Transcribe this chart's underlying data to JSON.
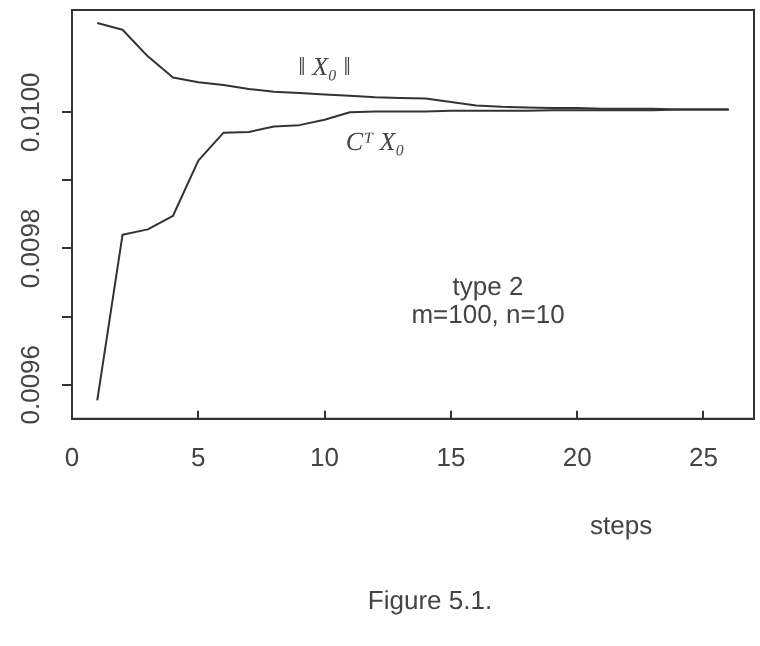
{
  "chart_data": {
    "type": "line",
    "xlabel": "steps",
    "xlim": [
      0,
      27
    ],
    "xticks": [
      0,
      5,
      10,
      15,
      20,
      25
    ],
    "ylim": [
      0.00955,
      0.01015
    ],
    "yticks": [
      0.0096,
      {
        "value": 0.0097,
        "label": null
      },
      0.0098,
      {
        "value": 0.0099,
        "label": null
      },
      {
        "value": 0.01,
        "label": "0.0100"
      }
    ],
    "x": [
      1,
      2,
      3,
      4,
      5,
      6,
      7,
      8,
      9,
      10,
      11,
      12,
      13,
      14,
      15,
      16,
      17,
      18,
      19,
      20,
      21,
      22,
      23,
      24,
      25,
      26
    ],
    "series": [
      {
        "name": "‖ X₀ ‖",
        "color": "#333333",
        "values": [
          0.010131,
          0.010121,
          0.010082,
          0.010051,
          0.010044,
          0.01004,
          0.010034,
          0.01003,
          0.010028,
          0.010026,
          0.010024,
          0.010022,
          0.010021,
          0.01002,
          0.010015,
          0.01001,
          0.010008,
          0.010007,
          0.010006,
          0.010006,
          0.010005,
          0.010005,
          0.010005,
          0.010004,
          0.010004,
          0.010004
        ]
      },
      {
        "name": "Cᵀ X₀",
        "color": "#333333",
        "values": [
          0.009577,
          0.00982,
          0.009828,
          0.009848,
          0.009929,
          0.00997,
          0.009971,
          0.009979,
          0.009981,
          0.009989,
          0.01,
          0.010001,
          0.010001,
          0.010001,
          0.010002,
          0.010002,
          0.010002,
          0.010002,
          0.010003,
          0.010003,
          0.010003,
          0.010003,
          0.010003,
          0.010004,
          0.010004,
          0.010004
        ]
      }
    ],
    "annotations": [
      "type 2",
      "m=100, n=10",
      "Figure 5.1."
    ],
    "grid": false,
    "legend": false,
    "marker": "none",
    "line_style": "solid"
  }
}
